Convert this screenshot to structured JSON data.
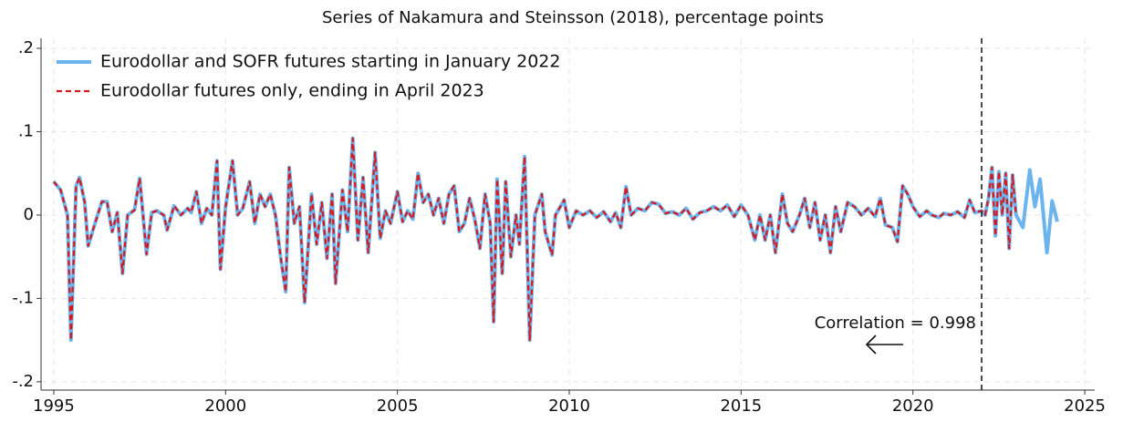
{
  "chart_data": {
    "type": "line",
    "title": "Series of Nakamura and Steinsson (2018), percentage points",
    "x": [
      1995.0,
      1995.2,
      1995.4,
      1995.5,
      1995.65,
      1995.75,
      1995.9,
      1996.0,
      1996.2,
      1996.4,
      1996.55,
      1996.7,
      1996.85,
      1997.0,
      1997.15,
      1997.35,
      1997.5,
      1997.7,
      1997.85,
      1998.0,
      1998.2,
      1998.3,
      1998.5,
      1998.7,
      1998.9,
      1999.0,
      1999.15,
      1999.3,
      1999.45,
      1999.6,
      1999.75,
      1999.85,
      2000.0,
      2000.2,
      2000.35,
      2000.5,
      2000.7,
      2000.85,
      2001.0,
      2001.15,
      2001.3,
      2001.45,
      2001.6,
      2001.75,
      2001.85,
      2002.0,
      2002.15,
      2002.3,
      2002.5,
      2002.65,
      2002.8,
      2002.95,
      2003.1,
      2003.2,
      2003.4,
      2003.55,
      2003.7,
      2003.85,
      2004.0,
      2004.15,
      2004.35,
      2004.5,
      2004.65,
      2004.8,
      2005.0,
      2005.15,
      2005.3,
      2005.45,
      2005.6,
      2005.75,
      2005.9,
      2006.05,
      2006.2,
      2006.35,
      2006.5,
      2006.65,
      2006.8,
      2006.95,
      2007.1,
      2007.25,
      2007.4,
      2007.55,
      2007.7,
      2007.8,
      2007.9,
      2008.05,
      2008.15,
      2008.3,
      2008.45,
      2008.55,
      2008.7,
      2008.85,
      2009.0,
      2009.2,
      2009.3,
      2009.5,
      2009.6,
      2009.85,
      2010.0,
      2010.2,
      2010.4,
      2010.6,
      2010.8,
      2011.0,
      2011.2,
      2011.35,
      2011.5,
      2011.65,
      2011.8,
      2012.0,
      2012.2,
      2012.4,
      2012.6,
      2012.8,
      2013.0,
      2013.2,
      2013.4,
      2013.6,
      2013.8,
      2014.0,
      2014.2,
      2014.4,
      2014.6,
      2014.8,
      2015.0,
      2015.2,
      2015.4,
      2015.55,
      2015.7,
      2015.85,
      2016.0,
      2016.2,
      2016.35,
      2016.5,
      2016.7,
      2016.85,
      2017.0,
      2017.15,
      2017.3,
      2017.45,
      2017.6,
      2017.75,
      2017.9,
      2018.1,
      2018.3,
      2018.5,
      2018.7,
      2018.9,
      2019.05,
      2019.2,
      2019.4,
      2019.55,
      2019.7,
      2019.85,
      2020.0,
      2020.2,
      2020.4,
      2020.55,
      2020.75,
      2020.9,
      2021.1,
      2021.3,
      2021.5,
      2021.65,
      2021.8,
      2022.0,
      2022.1,
      2022.2,
      2022.3,
      2022.4,
      2022.5,
      2022.6,
      2022.7,
      2022.8,
      2022.9,
      2023.0,
      2023.2,
      2023.4,
      2023.55,
      2023.7,
      2023.9,
      2024.05,
      2024.2
    ],
    "series": [
      {
        "name": "Eurodollar and SOFR futures starting in January 2022",
        "color": "#6cb4ee",
        "dashed": false,
        "values": [
          0.04,
          0.03,
          0.0,
          -0.15,
          0.035,
          0.045,
          0.015,
          -0.037,
          -0.01,
          0.016,
          0.016,
          -0.02,
          0.003,
          -0.07,
          0.0,
          0.006,
          0.044,
          -0.047,
          0.003,
          0.005,
          0.0,
          -0.018,
          0.011,
          0.0,
          0.008,
          0.003,
          0.028,
          -0.01,
          0.008,
          0.0,
          0.065,
          -0.065,
          0.01,
          0.065,
          0.0,
          0.008,
          0.04,
          -0.01,
          0.025,
          0.01,
          0.025,
          0.0,
          -0.05,
          -0.092,
          0.057,
          -0.01,
          0.01,
          -0.105,
          0.025,
          -0.035,
          0.015,
          -0.052,
          0.025,
          -0.082,
          0.03,
          -0.02,
          0.092,
          -0.03,
          0.045,
          -0.045,
          0.075,
          -0.028,
          0.005,
          -0.01,
          0.028,
          -0.008,
          0.005,
          -0.005,
          0.05,
          0.015,
          0.025,
          0.0,
          0.02,
          -0.01,
          0.025,
          0.035,
          -0.02,
          -0.01,
          0.02,
          -0.005,
          -0.04,
          0.025,
          -0.01,
          -0.128,
          0.043,
          -0.07,
          0.04,
          -0.05,
          0.0,
          -0.035,
          0.07,
          -0.15,
          0.0,
          0.025,
          -0.02,
          -0.048,
          0.0,
          0.018,
          -0.015,
          0.005,
          0.0,
          0.005,
          -0.003,
          0.004,
          -0.008,
          0.003,
          -0.015,
          0.034,
          0.0,
          0.008,
          0.005,
          0.015,
          0.013,
          0.002,
          0.004,
          0.0,
          0.008,
          -0.005,
          0.003,
          0.005,
          0.01,
          0.005,
          0.012,
          -0.002,
          0.012,
          0.0,
          -0.03,
          0.0,
          -0.03,
          0.0,
          -0.045,
          0.025,
          -0.01,
          -0.02,
          0.0,
          0.02,
          -0.015,
          0.015,
          -0.03,
          0.0,
          -0.045,
          0.01,
          -0.02,
          0.015,
          0.01,
          0.0,
          0.008,
          -0.002,
          0.02,
          -0.012,
          -0.015,
          -0.032,
          0.035,
          0.025,
          0.01,
          -0.002,
          0.005,
          0.0,
          -0.003,
          0.002,
          0.0,
          0.004,
          -0.003,
          0.018,
          0.003,
          0.005,
          0.0,
          0.02,
          0.057,
          -0.025,
          0.052,
          0.0,
          0.05,
          -0.04,
          0.048,
          0.0,
          -0.015,
          0.054,
          0.01,
          0.043,
          -0.045,
          0.017,
          -0.008
        ]
      },
      {
        "name": "Eurodollar futures only, ending in April 2023",
        "color": "#d7191c",
        "dashed": true,
        "values": [
          0.04,
          0.03,
          0.0,
          -0.15,
          0.035,
          0.045,
          0.015,
          -0.037,
          -0.01,
          0.016,
          0.016,
          -0.02,
          0.003,
          -0.07,
          0.0,
          0.006,
          0.044,
          -0.047,
          0.003,
          0.005,
          0.0,
          -0.018,
          0.011,
          0.0,
          0.008,
          0.003,
          0.028,
          -0.01,
          0.008,
          0.0,
          0.065,
          -0.065,
          0.01,
          0.065,
          0.0,
          0.008,
          0.04,
          -0.01,
          0.025,
          0.01,
          0.025,
          0.0,
          -0.05,
          -0.092,
          0.057,
          -0.01,
          0.01,
          -0.105,
          0.025,
          -0.035,
          0.015,
          -0.052,
          0.025,
          -0.082,
          0.03,
          -0.02,
          0.092,
          -0.03,
          0.045,
          -0.045,
          0.075,
          -0.028,
          0.005,
          -0.01,
          0.028,
          -0.008,
          0.005,
          -0.005,
          0.05,
          0.015,
          0.025,
          0.0,
          0.02,
          -0.01,
          0.025,
          0.035,
          -0.02,
          -0.01,
          0.02,
          -0.005,
          -0.04,
          0.025,
          -0.01,
          -0.128,
          0.043,
          -0.07,
          0.04,
          -0.05,
          0.0,
          -0.035,
          0.07,
          -0.15,
          0.0,
          0.025,
          -0.02,
          -0.048,
          0.0,
          0.018,
          -0.015,
          0.005,
          0.0,
          0.005,
          -0.003,
          0.004,
          -0.008,
          0.003,
          -0.015,
          0.034,
          0.0,
          0.008,
          0.005,
          0.015,
          0.013,
          0.002,
          0.004,
          0.0,
          0.008,
          -0.005,
          0.003,
          0.005,
          0.01,
          0.005,
          0.012,
          -0.002,
          0.012,
          0.0,
          -0.03,
          0.0,
          -0.03,
          0.0,
          -0.045,
          0.025,
          -0.01,
          -0.02,
          0.0,
          0.02,
          -0.015,
          0.015,
          -0.03,
          0.0,
          -0.045,
          0.01,
          -0.02,
          0.015,
          0.01,
          0.0,
          0.008,
          -0.002,
          0.02,
          -0.012,
          -0.015,
          -0.032,
          0.035,
          0.025,
          0.01,
          -0.002,
          0.005,
          0.0,
          -0.003,
          0.002,
          0.0,
          0.004,
          -0.003,
          0.018,
          0.003,
          0.005,
          0.0,
          0.02,
          0.057,
          -0.025,
          0.052,
          0.0,
          0.05,
          -0.04,
          0.048,
          0.0,
          null,
          null,
          null,
          null,
          null,
          null,
          null
        ]
      }
    ],
    "xlim": [
      1994.63,
      2025.29
    ],
    "xticks": [
      1995,
      2000,
      2005,
      2010,
      2015,
      2020,
      2025
    ],
    "ylim": [
      -0.21,
      0.212
    ],
    "yticks": [
      {
        "value": -0.2,
        "label": "-.2"
      },
      {
        "value": -0.1,
        "label": "-.1"
      },
      0,
      {
        "value": 0.1,
        "label": ".1"
      },
      {
        "value": 0.2,
        "label": ".2"
      }
    ],
    "grid": true,
    "legend": "top-left",
    "vline": 2022,
    "annotation": "Correlation = 0.998"
  }
}
